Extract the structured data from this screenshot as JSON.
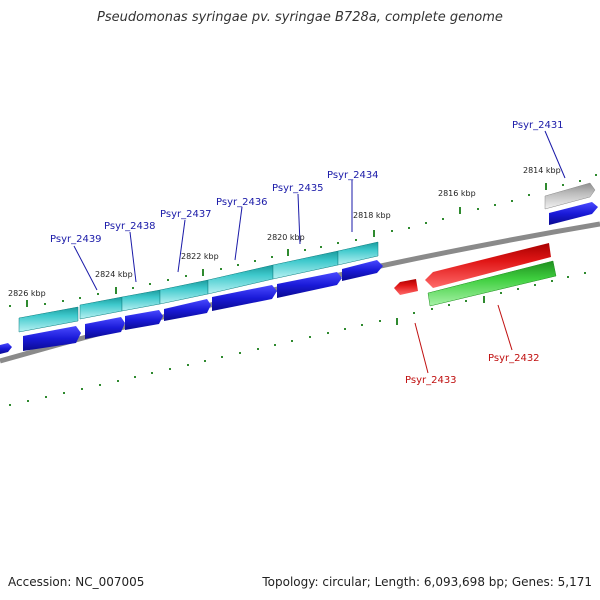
{
  "title": "Pseudomonas syringae pv. syringae B728a, complete genome",
  "footer": {
    "accession": "Accession: NC_007005",
    "summary": "Topology: circular; Length: 6,093,698 bp; Genes: 5,171"
  },
  "colors": {
    "backbone": "#8a8a8a",
    "tick": "#2f8a2f",
    "forward_gene": "#1a1ad8",
    "forward_highlight": "#3fc9cc",
    "reverse_gene": "#e01616",
    "reverse_highlight": "#3fcf3f",
    "other_gene": "#bdbdbd",
    "label_forward": "#1a1aa8",
    "label_reverse": "#c01010"
  },
  "kbp_labels": [
    "2826 kbp",
    "2824 kbp",
    "2822 kbp",
    "2820 kbp",
    "2818 kbp",
    "2816 kbp",
    "2814 kbp"
  ],
  "genes_top": [
    "Psyr_2439",
    "Psyr_2438",
    "Psyr_2437",
    "Psyr_2436",
    "Psyr_2435",
    "Psyr_2434",
    "Psyr_2431"
  ],
  "genes_bottom": [
    "Psyr_2433",
    "Psyr_2432"
  ]
}
